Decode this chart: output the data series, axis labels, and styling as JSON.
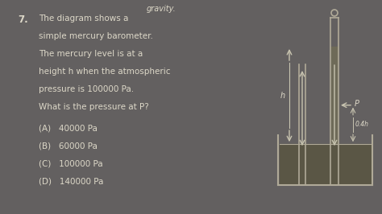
{
  "bg_color": "#636060",
  "text_color": "#ddd8c8",
  "gravity_text": "gravity.",
  "question_number": "7.",
  "question_lines": [
    "The diagram shows a",
    "simple mercury barometer.",
    "The mercury level is at a",
    "height h when the atmospheric",
    "pressure is 100000 Pa.",
    "What is the pressure at P?"
  ],
  "options": [
    "(A)   40000 Pa",
    "(B)   60000 Pa",
    "(C)   100000 Pa",
    "(D)   140000 Pa"
  ],
  "tube_color": "#b0aa98",
  "mercury_color": "#6e6a58",
  "reservoir_fill": "#5a5645",
  "arrow_color": "#c8c4b0"
}
